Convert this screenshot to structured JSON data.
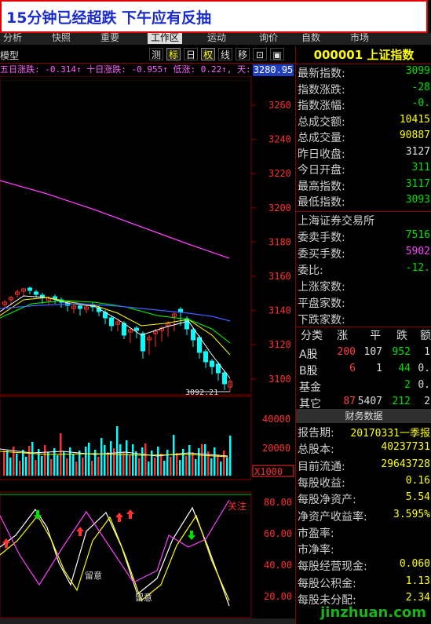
{
  "banner": {
    "title": "15分钟已经超跌 下午应有反抽"
  },
  "menu": {
    "items": [
      "分析",
      "快照",
      "重要",
      "工作区",
      "运动",
      "询价",
      "自数",
      "市场"
    ],
    "active_index": 3
  },
  "toolbar": {
    "left_label": "模型",
    "buttons": [
      "测",
      "标",
      "日",
      "权",
      "线",
      "移",
      "⊡",
      "▣"
    ],
    "highlighted": [
      "标",
      "权"
    ]
  },
  "ma_line": {
    "text": "五日涨跌: -0.314↑  十日涨跌: -0.955↑  低涨: 0.22↑, 天:"
  },
  "price_tag": "3280.95",
  "chart": {
    "y_ticks": [
      "3260",
      "3240",
      "3220",
      "3200",
      "3180",
      "3160",
      "3140",
      "3120",
      "3100"
    ],
    "low_label": "3092.21",
    "vol_ticks": [
      "40000",
      "20000"
    ],
    "vol_unit": "X1000",
    "osc_ticks": [
      "80.00",
      "60.00",
      "40.00",
      "20.00"
    ],
    "osc_labels": {
      "attention": "关注",
      "caution1": "留意",
      "caution2": "留意"
    },
    "colors": {
      "up": "#ff3030",
      "down": "#00ffff",
      "ma_long": "#ff40ff",
      "ma5": "#ffffff",
      "ma10": "#ffff00",
      "ma20": "#00ff00",
      "ma30": "#4060ff"
    }
  },
  "right_panel": {
    "code_title": "000001 上证指数",
    "quotes": [
      {
        "k": "最新指数:",
        "v": "3099",
        "c": "green"
      },
      {
        "k": "指数涨跌:",
        "v": "-28",
        "c": "green"
      },
      {
        "k": "指数涨幅:",
        "v": "-0.",
        "c": "green"
      },
      {
        "k": "总成交额:",
        "v": "10415",
        "c": "yel"
      },
      {
        "k": "总成交量:",
        "v": "90887",
        "c": "yel"
      },
      {
        "k": "昨日收盘:",
        "v": "3127",
        "c": "wht"
      },
      {
        "k": "今日开盘:",
        "v": "311",
        "c": "green"
      },
      {
        "k": "最高指数:",
        "v": "3117",
        "c": "green"
      },
      {
        "k": "最低指数:",
        "v": "3093",
        "c": "green"
      }
    ],
    "exchange": "上海证券交易所",
    "orders": [
      {
        "k": "委卖手数:",
        "v": "7516",
        "c": "green"
      },
      {
        "k": "委买手数:",
        "v": "5902",
        "c": "mag"
      },
      {
        "k": "委比:",
        "v": "-12.",
        "c": "green"
      },
      {
        "k": "上涨家数:",
        "v": "",
        "c": "wht"
      },
      {
        "k": "平盘家数:",
        "v": "",
        "c": "wht"
      },
      {
        "k": "下跌家数:",
        "v": "",
        "c": "wht"
      }
    ],
    "table": {
      "headers": [
        "分类",
        "涨",
        "平",
        "跌",
        "额"
      ],
      "rows": [
        {
          "name": "A股",
          "up": "200",
          "flat": "107",
          "down": "952",
          "amt": "1"
        },
        {
          "name": "B股",
          "up": "6",
          "flat": "1",
          "down": "44",
          "amt": "0."
        },
        {
          "name": "基金",
          "up": "",
          "flat": "",
          "down": "2",
          "amt": "0."
        },
        {
          "name": "其它",
          "up": "87",
          "flat": "5407",
          "down": "212",
          "amt": "2"
        }
      ]
    },
    "fin_title": "财务数据",
    "financials": [
      {
        "k": "报告期:",
        "v": "20170331一季报",
        "c": "yel"
      },
      {
        "k": "总股本:",
        "v": "40237731",
        "c": "yel"
      },
      {
        "k": "目前流通:",
        "v": "29643728",
        "c": "yel"
      },
      {
        "k": "每股收益:",
        "v": "0.16",
        "c": "yel"
      },
      {
        "k": "每股净资产:",
        "v": "5.54",
        "c": "yel"
      },
      {
        "k": "净资产收益率:",
        "v": "3.595%",
        "c": "yel"
      },
      {
        "k": "市盈率:",
        "v": "",
        "c": "yel"
      },
      {
        "k": "市净率:",
        "v": "",
        "c": "yel"
      },
      {
        "k": "每股经营现金:",
        "v": "0.060",
        "c": "yel"
      },
      {
        "k": "每股公积金:",
        "v": "1.13",
        "c": "yel"
      },
      {
        "k": "每股未分配:",
        "v": "2.34",
        "c": "yel"
      }
    ]
  },
  "watermark": "jinzhuan.com"
}
